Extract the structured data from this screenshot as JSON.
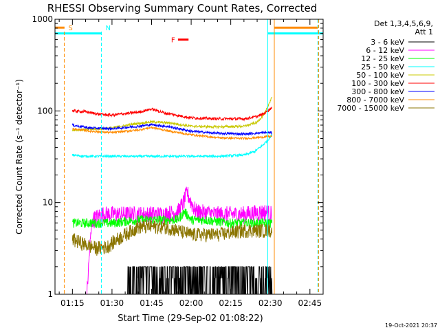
{
  "chart_data": {
    "type": "line",
    "title": "RHESSI Observing Summary Count Rates, Corrected",
    "xlabel": "Start Time (29-Sep-02 01:08:22)",
    "ylabel": "Corrected Count Rate (s⁻¹ detector⁻¹)",
    "y_scale": "log",
    "ylim": [
      1,
      1000
    ],
    "xlim_minutes": [
      68.4,
      170.0
    ],
    "x_ticks": [
      {
        "m": 75,
        "label": "01:15"
      },
      {
        "m": 90,
        "label": "01:30"
      },
      {
        "m": 105,
        "label": "01:45"
      },
      {
        "m": 120,
        "label": "02:00"
      },
      {
        "m": 135,
        "label": "02:15"
      },
      {
        "m": 150,
        "label": "02:30"
      },
      {
        "m": 165,
        "label": "02:45"
      }
    ],
    "y_ticks": [
      {
        "v": 1,
        "label": "1"
      },
      {
        "v": 10,
        "label": "10"
      },
      {
        "v": 100,
        "label": "100"
      },
      {
        "v": 1000,
        "label": "1000"
      }
    ],
    "legend": {
      "placement": "right",
      "header": [
        "Det 1,3,4,5,6,9,",
        "Att 1"
      ]
    },
    "series": [
      {
        "name": "3 - 6 keV",
        "color": "#000000",
        "x": [
          79.0,
          85.0,
          95.0,
          105.0,
          115.0,
          125.0,
          135.0,
          145.0,
          150.7
        ],
        "y": [
          1.0,
          1.0,
          1.5,
          1.6,
          1.5,
          1.5,
          1.6,
          1.6,
          2.0
        ]
      },
      {
        "name": "6 - 12 keV",
        "color": "#ff00ff",
        "x": [
          80.5,
          81.5,
          82.5,
          86.0,
          95.0,
          110.0,
          115.0,
          117.0,
          118.5,
          120.0,
          122.0,
          130.0,
          140.0,
          148.0,
          150.7
        ],
        "y": [
          1.0,
          3.0,
          6.5,
          7.5,
          7.5,
          7.5,
          8.0,
          10.0,
          13.0,
          10.0,
          8.0,
          7.5,
          7.5,
          8.0,
          7.5
        ]
      },
      {
        "name": "12 - 25 keV",
        "color": "#00ff00",
        "x": [
          75.0,
          80.0,
          90.0,
          100.0,
          110.0,
          115.0,
          117.5,
          120.0,
          125.0,
          135.0,
          145.0,
          150.7
        ],
        "y": [
          6.0,
          6.0,
          6.0,
          6.5,
          6.5,
          6.5,
          8.0,
          6.5,
          6.5,
          6.0,
          6.0,
          6.0
        ]
      },
      {
        "name": "25 - 50 keV",
        "color": "#00ffff",
        "x": [
          75.0,
          80.0,
          90.0,
          100.0,
          110.0,
          120.0,
          130.0,
          140.0,
          144.0,
          147.0,
          149.0,
          150.7
        ],
        "y": [
          33.0,
          32.0,
          32.0,
          32.0,
          32.0,
          32.0,
          32.0,
          33.0,
          36.0,
          42.0,
          48.0,
          55.0
        ]
      },
      {
        "name": "50 - 100 keV",
        "color": "#c8c800",
        "x": [
          75.0,
          82.0,
          90.0,
          98.0,
          105.0,
          112.0,
          120.0,
          130.0,
          140.0,
          145.0,
          148.0,
          150.7
        ],
        "y": [
          62.0,
          63.0,
          65.0,
          72.0,
          76.0,
          74.0,
          68.0,
          67.0,
          68.0,
          75.0,
          95.0,
          145.0
        ]
      },
      {
        "name": "100 - 300 keV",
        "color": "#ff0000",
        "x": [
          75.0,
          80.0,
          85.0,
          90.0,
          100.0,
          105.0,
          110.0,
          120.0,
          130.0,
          140.0,
          145.0,
          148.0,
          150.7
        ],
        "y": [
          100.0,
          98.0,
          92.0,
          90.0,
          97.0,
          105.0,
          95.0,
          84.0,
          82.0,
          82.0,
          87.0,
          95.0,
          110.0
        ]
      },
      {
        "name": "300 - 800 keV",
        "color": "#0000ff",
        "x": [
          75.0,
          82.0,
          90.0,
          100.0,
          105.0,
          112.0,
          120.0,
          130.0,
          140.0,
          148.0,
          150.7
        ],
        "y": [
          70.0,
          65.0,
          64.0,
          68.0,
          71.0,
          67.0,
          60.0,
          57.0,
          56.0,
          58.0,
          58.0
        ]
      },
      {
        "name": "800 - 7000 keV",
        "color": "#ff8c00",
        "x": [
          75.0,
          82.0,
          90.0,
          100.0,
          105.0,
          112.0,
          120.0,
          130.0,
          140.0,
          148.0,
          150.7
        ],
        "y": [
          64.0,
          60.0,
          58.0,
          62.0,
          66.0,
          60.0,
          55.0,
          51.0,
          50.0,
          52.0,
          53.0
        ]
      },
      {
        "name": "7000 - 15000 keV",
        "color": "#8b7500",
        "x": [
          75.0,
          80.0,
          84.0,
          88.0,
          92.0,
          100.0,
          110.0,
          120.0,
          130.0,
          140.0,
          150.7
        ],
        "y": [
          4.0,
          3.5,
          3.2,
          3.3,
          4.0,
          5.5,
          5.5,
          4.5,
          4.5,
          5.0,
          5.0
        ]
      }
    ],
    "annotations": [
      {
        "label": "S",
        "color": "#ff8c00",
        "x": 71.9,
        "kind": "dashed-line"
      },
      {
        "label": "N",
        "color": "#00ffff",
        "x": 86.0,
        "kind": "dashed-line"
      },
      {
        "label": "F",
        "color": "#ff0000",
        "x_start": 115.0,
        "x_end": 119.0,
        "y": 600,
        "kind": "bar"
      }
    ],
    "flags": [
      {
        "color": "#00ffff",
        "y": 700,
        "ranges": [
          [
            68.4,
            86.0
          ],
          [
            149.0,
            170.0
          ]
        ]
      },
      {
        "color": "#ff8c00",
        "y": 810,
        "ranges": [
          [
            68.4,
            72.0
          ],
          [
            151.5,
            168.0
          ]
        ]
      }
    ],
    "vertical_lines": [
      {
        "color": "#00ffff",
        "x": 149.0,
        "style": "solid"
      },
      {
        "color": "#ff8c00",
        "x": 151.5,
        "style": "solid"
      },
      {
        "color": "#00ffff",
        "x": 168.0,
        "style": "dashed"
      },
      {
        "color": "#ff8c00",
        "x": 168.3,
        "style": "dashed"
      }
    ],
    "footer_date": "19-Oct-2021 20:37"
  }
}
